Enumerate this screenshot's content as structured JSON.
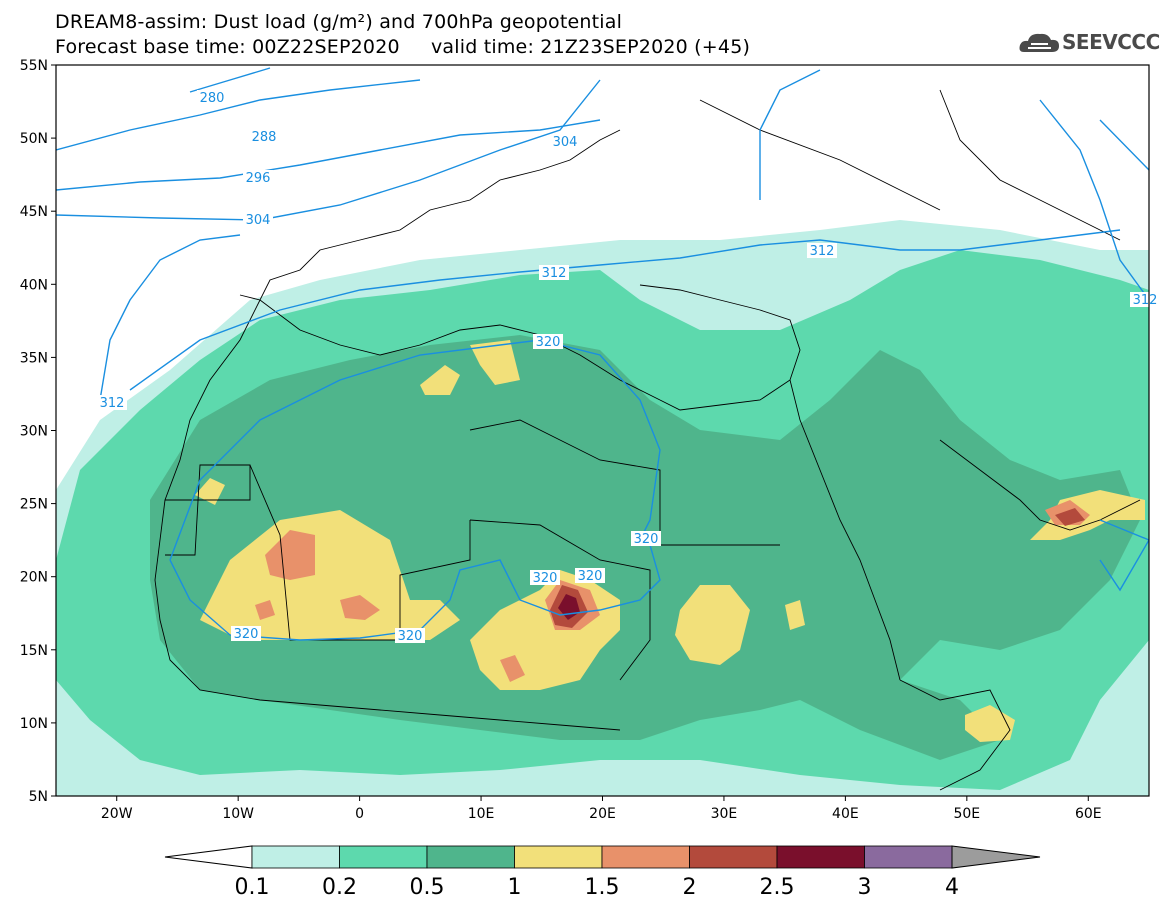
{
  "title_line1": "DREAM8-assim: Dust load (g/m²) and 700hPa geopotential",
  "title_line2": "Forecast base time: 00Z22SEP2020     valid time: 21Z23SEP2020 (+45)",
  "logo_text": "SEEVCCC",
  "map": {
    "lon_range": [
      -25,
      65
    ],
    "lat_range": [
      5,
      55
    ],
    "lat_ticks": [
      "55N",
      "50N",
      "45N",
      "40N",
      "35N",
      "30N",
      "25N",
      "20N",
      "15N",
      "10N",
      "5N"
    ],
    "lon_ticks": [
      "20W",
      "10W",
      "0",
      "10E",
      "20E",
      "30E",
      "40E",
      "50E",
      "60E"
    ],
    "contour_labels": [
      "280",
      "288",
      "296",
      "304",
      "304",
      "312",
      "312",
      "312",
      "312",
      "320",
      "320",
      "320",
      "320",
      "320",
      "320"
    ]
  },
  "colorbar": {
    "labels": [
      "0.1",
      "0.2",
      "0.5",
      "1",
      "1.5",
      "2",
      "2.5",
      "3",
      "4"
    ],
    "colors": [
      "#bfefe6",
      "#5dd9ad",
      "#4fb58c",
      "#f2e07a",
      "#e8916a",
      "#b34a3c",
      "#7a0f2c",
      "#8a6a9e",
      "#9c9c9c"
    ]
  }
}
